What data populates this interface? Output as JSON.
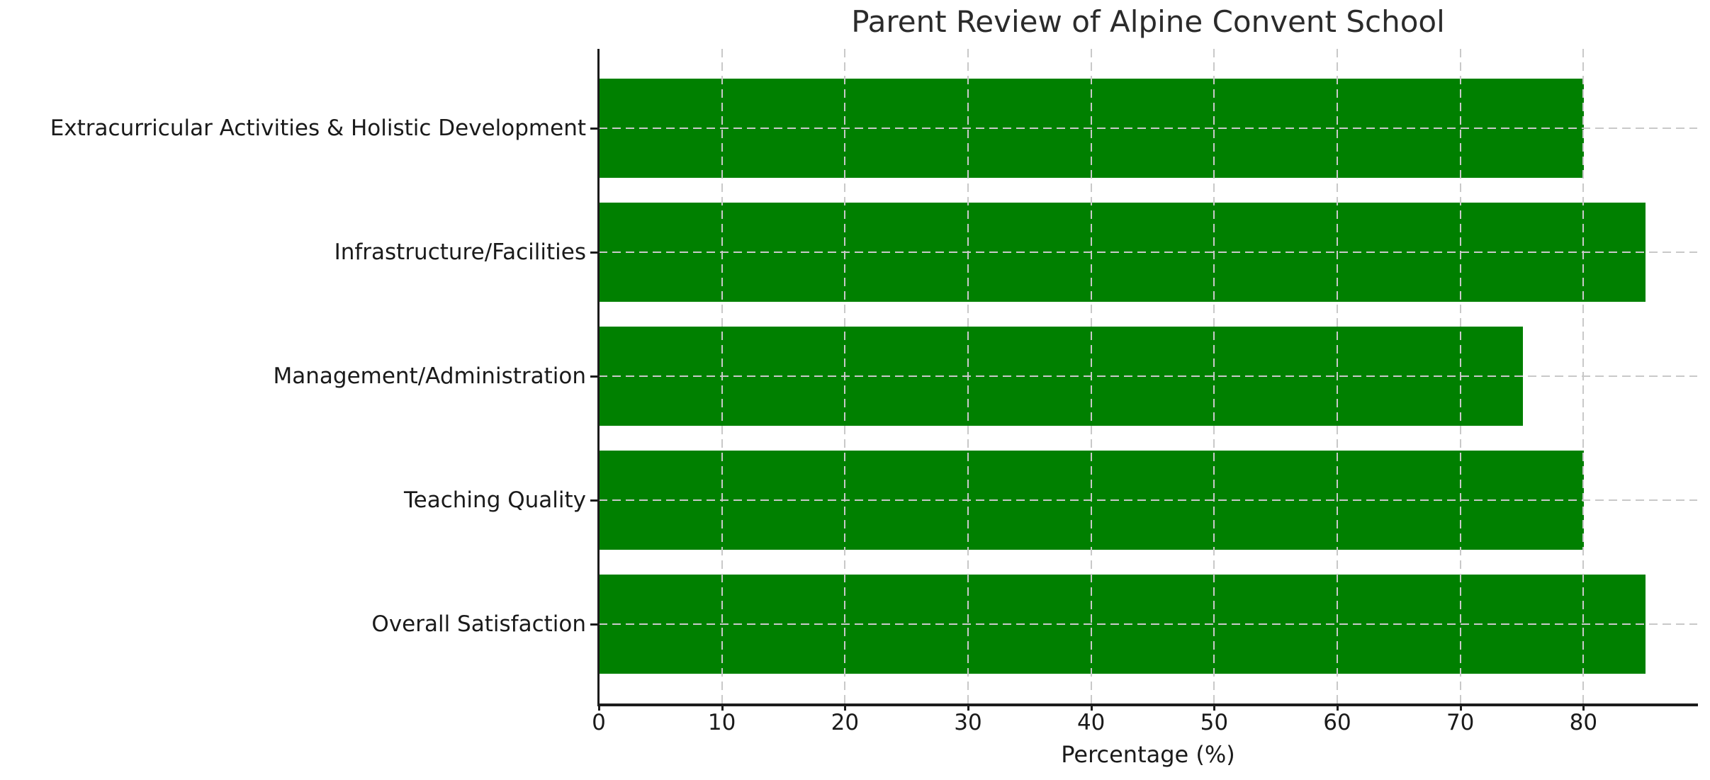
{
  "chart_data": {
    "type": "bar",
    "orientation": "horizontal",
    "title": "Parent Review of Alpine Convent School",
    "xlabel": "Percentage (%)",
    "ylabel": "",
    "categories": [
      "Extracurricular Activities & Holistic Development",
      "Infrastructure/Facilities",
      "Management/Administration",
      "Teaching Quality",
      "Overall Satisfaction"
    ],
    "values": [
      80,
      85,
      75,
      80,
      85
    ],
    "xlim": [
      0,
      89.25
    ],
    "xticks": [
      0,
      10,
      20,
      30,
      40,
      50,
      60,
      70,
      80
    ],
    "bar_color": "#008000",
    "grid": "dashed",
    "grid_on_top": true,
    "grid_color": "#c9c9c9",
    "spine_color": "#1c1c1c",
    "text_color": "#1a1a1a",
    "background": "#ffffff",
    "legend": "none"
  }
}
